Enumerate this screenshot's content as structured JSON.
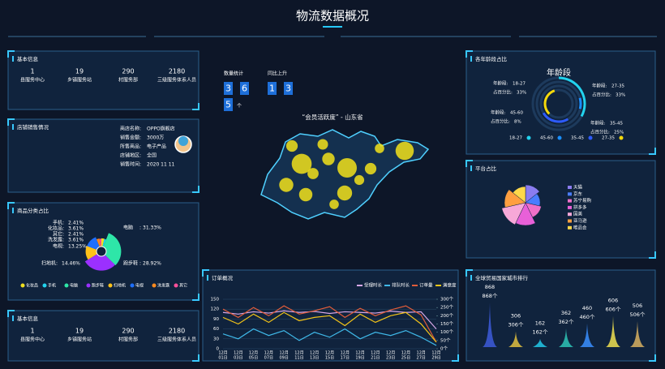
{
  "header": {
    "title": "物流数据概况"
  },
  "basic_info": [
    {
      "title": "基本信息",
      "stats": [
        {
          "number": "1",
          "label": "县服务中心"
        },
        {
          "number": "19",
          "label": "乡镇服务站"
        },
        {
          "number": "290",
          "label": "村服务部"
        },
        {
          "number": "2180",
          "label": "三级服务体系人员"
        }
      ]
    },
    {
      "title": "基本信息",
      "stats": [
        {
          "number": "1",
          "label": "县服务中心"
        },
        {
          "number": "19",
          "label": "乡镇服务站"
        },
        {
          "number": "290",
          "label": "村服务部"
        },
        {
          "number": "2180",
          "label": "三级服务体系人员"
        }
      ]
    }
  ],
  "store": {
    "title": "店铺销售情况",
    "fields": [
      {
        "label": "商店名称:",
        "value": "OPPO旗舰店"
      },
      {
        "label": "销售金额:",
        "value": "3000万"
      },
      {
        "label": "所售商品:",
        "value": "电子产品"
      },
      {
        "label": "店铺地区:",
        "value": "全国"
      },
      {
        "label": "销售时间:",
        "value": "2020 11 11"
      }
    ]
  },
  "counters": {
    "count_label": "数量统计",
    "count_digits": [
      "3",
      "6",
      "5"
    ],
    "count_unit": "个",
    "rise_label": "同比上升",
    "rise_digits": [
      "1",
      "3"
    ]
  },
  "map": {
    "title": "“会员活跃度” - 山东省",
    "color": "#f2e21a",
    "values": [
      90,
      85,
      75,
      45,
      50,
      40,
      30,
      25,
      35,
      30,
      20,
      28,
      22,
      20
    ]
  },
  "chart_data": [
    {
      "type": "pie",
      "title": "商品分类占比",
      "categories": [
        "化妆品",
        "手机",
        "电脑",
        "跑步鞋",
        "扫地机",
        "电视",
        "洗发露",
        "其它"
      ],
      "label_separator": ":",
      "values": [
        3.61,
        2.41,
        31.33,
        28.92,
        14.46,
        13.25,
        3.61,
        2.41
      ],
      "value_labels": [
        "3.61%",
        "2.41%",
        "31.33%",
        "28.92%",
        "14.46%",
        "13.25%",
        "3.61%",
        "2.41%"
      ],
      "colors": [
        "#f0e020",
        "#22d3ee",
        "#2ee6a8",
        "#9b30ff",
        "#ffc21a",
        "#1f6fff",
        "#ff8a1f",
        "#ff4f9a"
      ],
      "legend": true
    },
    {
      "type": "line",
      "title": "订单概况",
      "categories": [
        [
          "12月",
          "01日"
        ],
        [
          "12月",
          "03日"
        ],
        [
          "12月",
          "05日"
        ],
        [
          "12月",
          "07日"
        ],
        [
          "12月",
          "09日"
        ],
        [
          "12月",
          "11日"
        ],
        [
          "12月",
          "13日"
        ],
        [
          "12月",
          "15日"
        ],
        [
          "12月",
          "17日"
        ],
        [
          "12月",
          "19日"
        ],
        [
          "12月",
          "21日"
        ],
        [
          "12月",
          "23日"
        ],
        [
          "12月",
          "25日"
        ],
        [
          "12月",
          "27日"
        ],
        [
          "12月",
          "29日"
        ]
      ],
      "series": [
        {
          "name": "受理时长",
          "color": "#d8a8e8",
          "values": [
            110,
            105,
            112,
            108,
            115,
            110,
            113,
            107,
            112,
            110,
            108,
            114,
            110,
            112,
            60
          ]
        },
        {
          "name": "排队时长",
          "color": "#3fb8e8",
          "values": [
            45,
            30,
            60,
            40,
            55,
            25,
            50,
            35,
            60,
            30,
            50,
            40,
            55,
            35,
            10
          ]
        },
        {
          "name": "订单量",
          "color": "#e05c3a",
          "axis": "y2",
          "values": [
            240,
            190,
            250,
            200,
            260,
            210,
            230,
            255,
            190,
            245,
            200,
            235,
            260,
            205,
            40
          ]
        },
        {
          "name": "满意度",
          "color": "#f5c518",
          "values": [
            95,
            75,
            105,
            80,
            110,
            85,
            95,
            100,
            70,
            105,
            80,
            100,
            110,
            75,
            20
          ]
        }
      ],
      "ylim": [
        0,
        150
      ],
      "yticks": [
        0,
        30,
        60,
        90,
        120,
        150
      ],
      "y2lim": [
        0,
        300
      ],
      "y2ticks": [
        {
          "value": 0,
          "label": "0个"
        },
        {
          "value": 50,
          "label": "50个"
        },
        {
          "value": 100,
          "label": "100个"
        },
        {
          "value": 150,
          "label": "150个"
        },
        {
          "value": 200,
          "label": "200个"
        },
        {
          "value": 250,
          "label": "250个"
        },
        {
          "value": 300,
          "label": "300个"
        }
      ],
      "grid": true
    },
    {
      "type": "ring",
      "title": "各年龄段占比",
      "subtitle": "年龄段",
      "category_prefix": "年龄段:",
      "value_prefix": "占百分比:",
      "categories": [
        "18-27",
        "45-60",
        "35-45",
        "27-35"
      ],
      "values": [
        33,
        8,
        25,
        33
      ],
      "value_labels": [
        "33%",
        "8%",
        "25%",
        "33%"
      ],
      "colors": [
        "#22d3ee",
        "#1a8fff",
        "#2d5bff",
        "#f5d90a"
      ]
    },
    {
      "type": "rose",
      "title": "平台占比",
      "categories": [
        "天猫",
        "京东",
        "苏宁易购",
        "拼多多",
        "国美",
        "亚马逊",
        "唯品会"
      ],
      "values": [
        22,
        18,
        20,
        28,
        30,
        26,
        20
      ],
      "colors": [
        "#8a7cf0",
        "#4a7dff",
        "#f070c8",
        "#e860d8",
        "#f7a8d8",
        "#ff9f40",
        "#ffd84a"
      ]
    },
    {
      "type": "spike",
      "title": "全球贸易国家城市排行",
      "values": [
        868,
        306,
        162,
        362,
        460,
        606,
        506
      ],
      "value_labels": [
        "868个",
        "306个",
        "162个",
        "362个",
        "460个",
        "606个",
        "506个"
      ],
      "colors": [
        "#3d5bd9",
        "#e0c040",
        "#22c8e8",
        "#2ec4b6",
        "#3a8fff",
        "#f0e050",
        "#d8b060"
      ]
    }
  ]
}
